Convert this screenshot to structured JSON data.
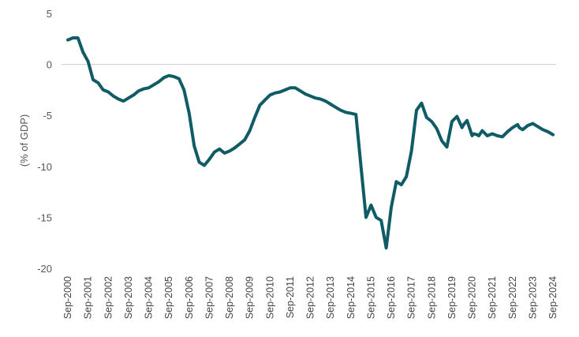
{
  "chart_data": {
    "type": "line",
    "title": "",
    "xlabel": "",
    "ylabel": "(% of GDP)",
    "ylim": [
      -20,
      5
    ],
    "yticks": [
      5,
      0,
      -5,
      -10,
      -15,
      -20
    ],
    "grid": false,
    "legend": "none",
    "line_color": "#0f5b66",
    "x_tick_labels": [
      "Sep-2000",
      "Sep-2001",
      "Sep-2002",
      "Sep-2003",
      "Sep-2004",
      "Sep-2005",
      "Sep-2006",
      "Sep-2007",
      "Sep-2008",
      "Sep-2009",
      "Sep-2010",
      "Sep-2011",
      "Sep-2012",
      "Sep-2013",
      "Sep-2014",
      "Sep-2015",
      "Sep-2016",
      "Sep-2017",
      "Sep-2018",
      "Sep-2019",
      "Sep-2020",
      "Sep-2021",
      "Sep-2022",
      "Sep-2023",
      "Sep-2024"
    ],
    "x": [
      "2000-09",
      "2000-12",
      "2001-03",
      "2001-06",
      "2001-09",
      "2001-12",
      "2002-03",
      "2002-06",
      "2002-09",
      "2002-12",
      "2003-03",
      "2003-06",
      "2003-09",
      "2003-12",
      "2004-03",
      "2004-06",
      "2004-09",
      "2004-12",
      "2005-03",
      "2005-06",
      "2005-09",
      "2005-12",
      "2006-03",
      "2006-06",
      "2006-09",
      "2006-12",
      "2007-03",
      "2007-06",
      "2007-09",
      "2007-12",
      "2008-03",
      "2008-06",
      "2008-09",
      "2008-12",
      "2009-03",
      "2009-06",
      "2009-09",
      "2009-12",
      "2010-03",
      "2010-06",
      "2010-09",
      "2010-12",
      "2011-03",
      "2011-06",
      "2011-09",
      "2011-12",
      "2012-03",
      "2012-06",
      "2012-09",
      "2012-12",
      "2013-03",
      "2013-06",
      "2013-09",
      "2013-12",
      "2014-03",
      "2014-06",
      "2014-09",
      "2014-12",
      "2015-03",
      "2015-06",
      "2015-09",
      "2015-12",
      "2016-03",
      "2016-06",
      "2016-09",
      "2016-12",
      "2017-03",
      "2017-06",
      "2017-09",
      "2017-12",
      "2018-03",
      "2018-06",
      "2018-09",
      "2018-12",
      "2019-03",
      "2019-06",
      "2019-09",
      "2019-12",
      "2020-03",
      "2020-04",
      "2020-06",
      "2020-09",
      "2020-10",
      "2020-12",
      "2021-01",
      "2021-03",
      "2021-06",
      "2021-09",
      "2021-12",
      "2022-03",
      "2022-06",
      "2022-09",
      "2022-12",
      "2023-01",
      "2023-03",
      "2023-06",
      "2023-09",
      "2023-12",
      "2024-03",
      "2024-06",
      "2024-09"
    ],
    "y": [
      2.4,
      2.6,
      2.6,
      1.2,
      0.3,
      -1.5,
      -1.8,
      -2.5,
      -2.7,
      -3.1,
      -3.4,
      -3.6,
      -3.3,
      -3.0,
      -2.6,
      -2.4,
      -2.3,
      -2.0,
      -1.7,
      -1.3,
      -1.1,
      -1.2,
      -1.4,
      -2.5,
      -4.8,
      -8.0,
      -9.6,
      -9.9,
      -9.3,
      -8.6,
      -8.3,
      -8.7,
      -8.5,
      -8.2,
      -7.8,
      -7.4,
      -6.5,
      -5.2,
      -4.0,
      -3.5,
      -3.0,
      -2.8,
      -2.7,
      -2.5,
      -2.3,
      -2.3,
      -2.6,
      -2.9,
      -3.1,
      -3.3,
      -3.4,
      -3.6,
      -3.9,
      -4.2,
      -4.5,
      -4.7,
      -4.8,
      -4.9,
      -10.0,
      -15.0,
      -13.8,
      -15.0,
      -15.3,
      -18.0,
      -14.0,
      -11.5,
      -11.8,
      -11.0,
      -8.5,
      -4.5,
      -3.8,
      -5.2,
      -5.6,
      -6.3,
      -7.5,
      -8.1,
      -5.6,
      -5.1,
      -6.2,
      -5.9,
      -5.5,
      -7.0,
      -6.8,
      -6.9,
      -7.0,
      -6.5,
      -7.0,
      -6.8,
      -7.0,
      -7.1,
      -6.6,
      -6.2,
      -5.9,
      -6.2,
      -6.4,
      -6.0,
      -5.8,
      -6.1,
      -6.4,
      -6.6,
      -6.9
    ]
  }
}
